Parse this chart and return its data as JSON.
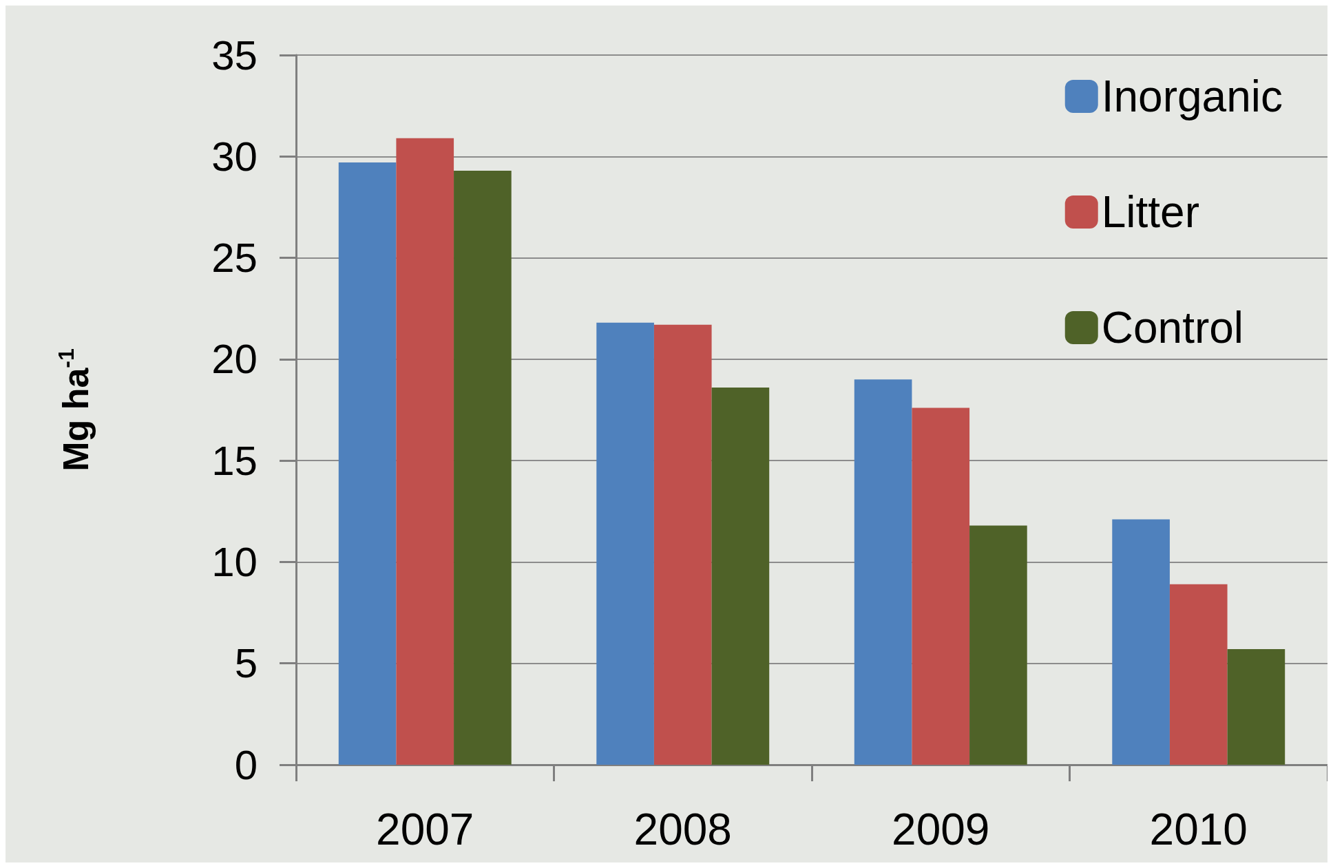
{
  "chart_data": {
    "type": "bar",
    "ylabel": "Mg ha$^{-1}$",
    "categories": [
      "2007",
      "2008",
      "2009",
      "2010"
    ],
    "series": [
      {
        "name": "Inorganic",
        "color": "#4f81bd",
        "values": [
          29.7,
          21.8,
          19.0,
          12.1
        ]
      },
      {
        "name": "Litter",
        "color": "#c0504d",
        "values": [
          30.9,
          21.7,
          17.6,
          8.9
        ]
      },
      {
        "name": "Control",
        "color": "#4f6228",
        "values": [
          29.3,
          18.6,
          11.8,
          5.7
        ]
      }
    ],
    "ylim": [
      0,
      35
    ],
    "yticks": [
      0,
      5,
      10,
      15,
      20,
      25,
      30,
      35
    ],
    "grid": "y",
    "legend": "top right"
  }
}
